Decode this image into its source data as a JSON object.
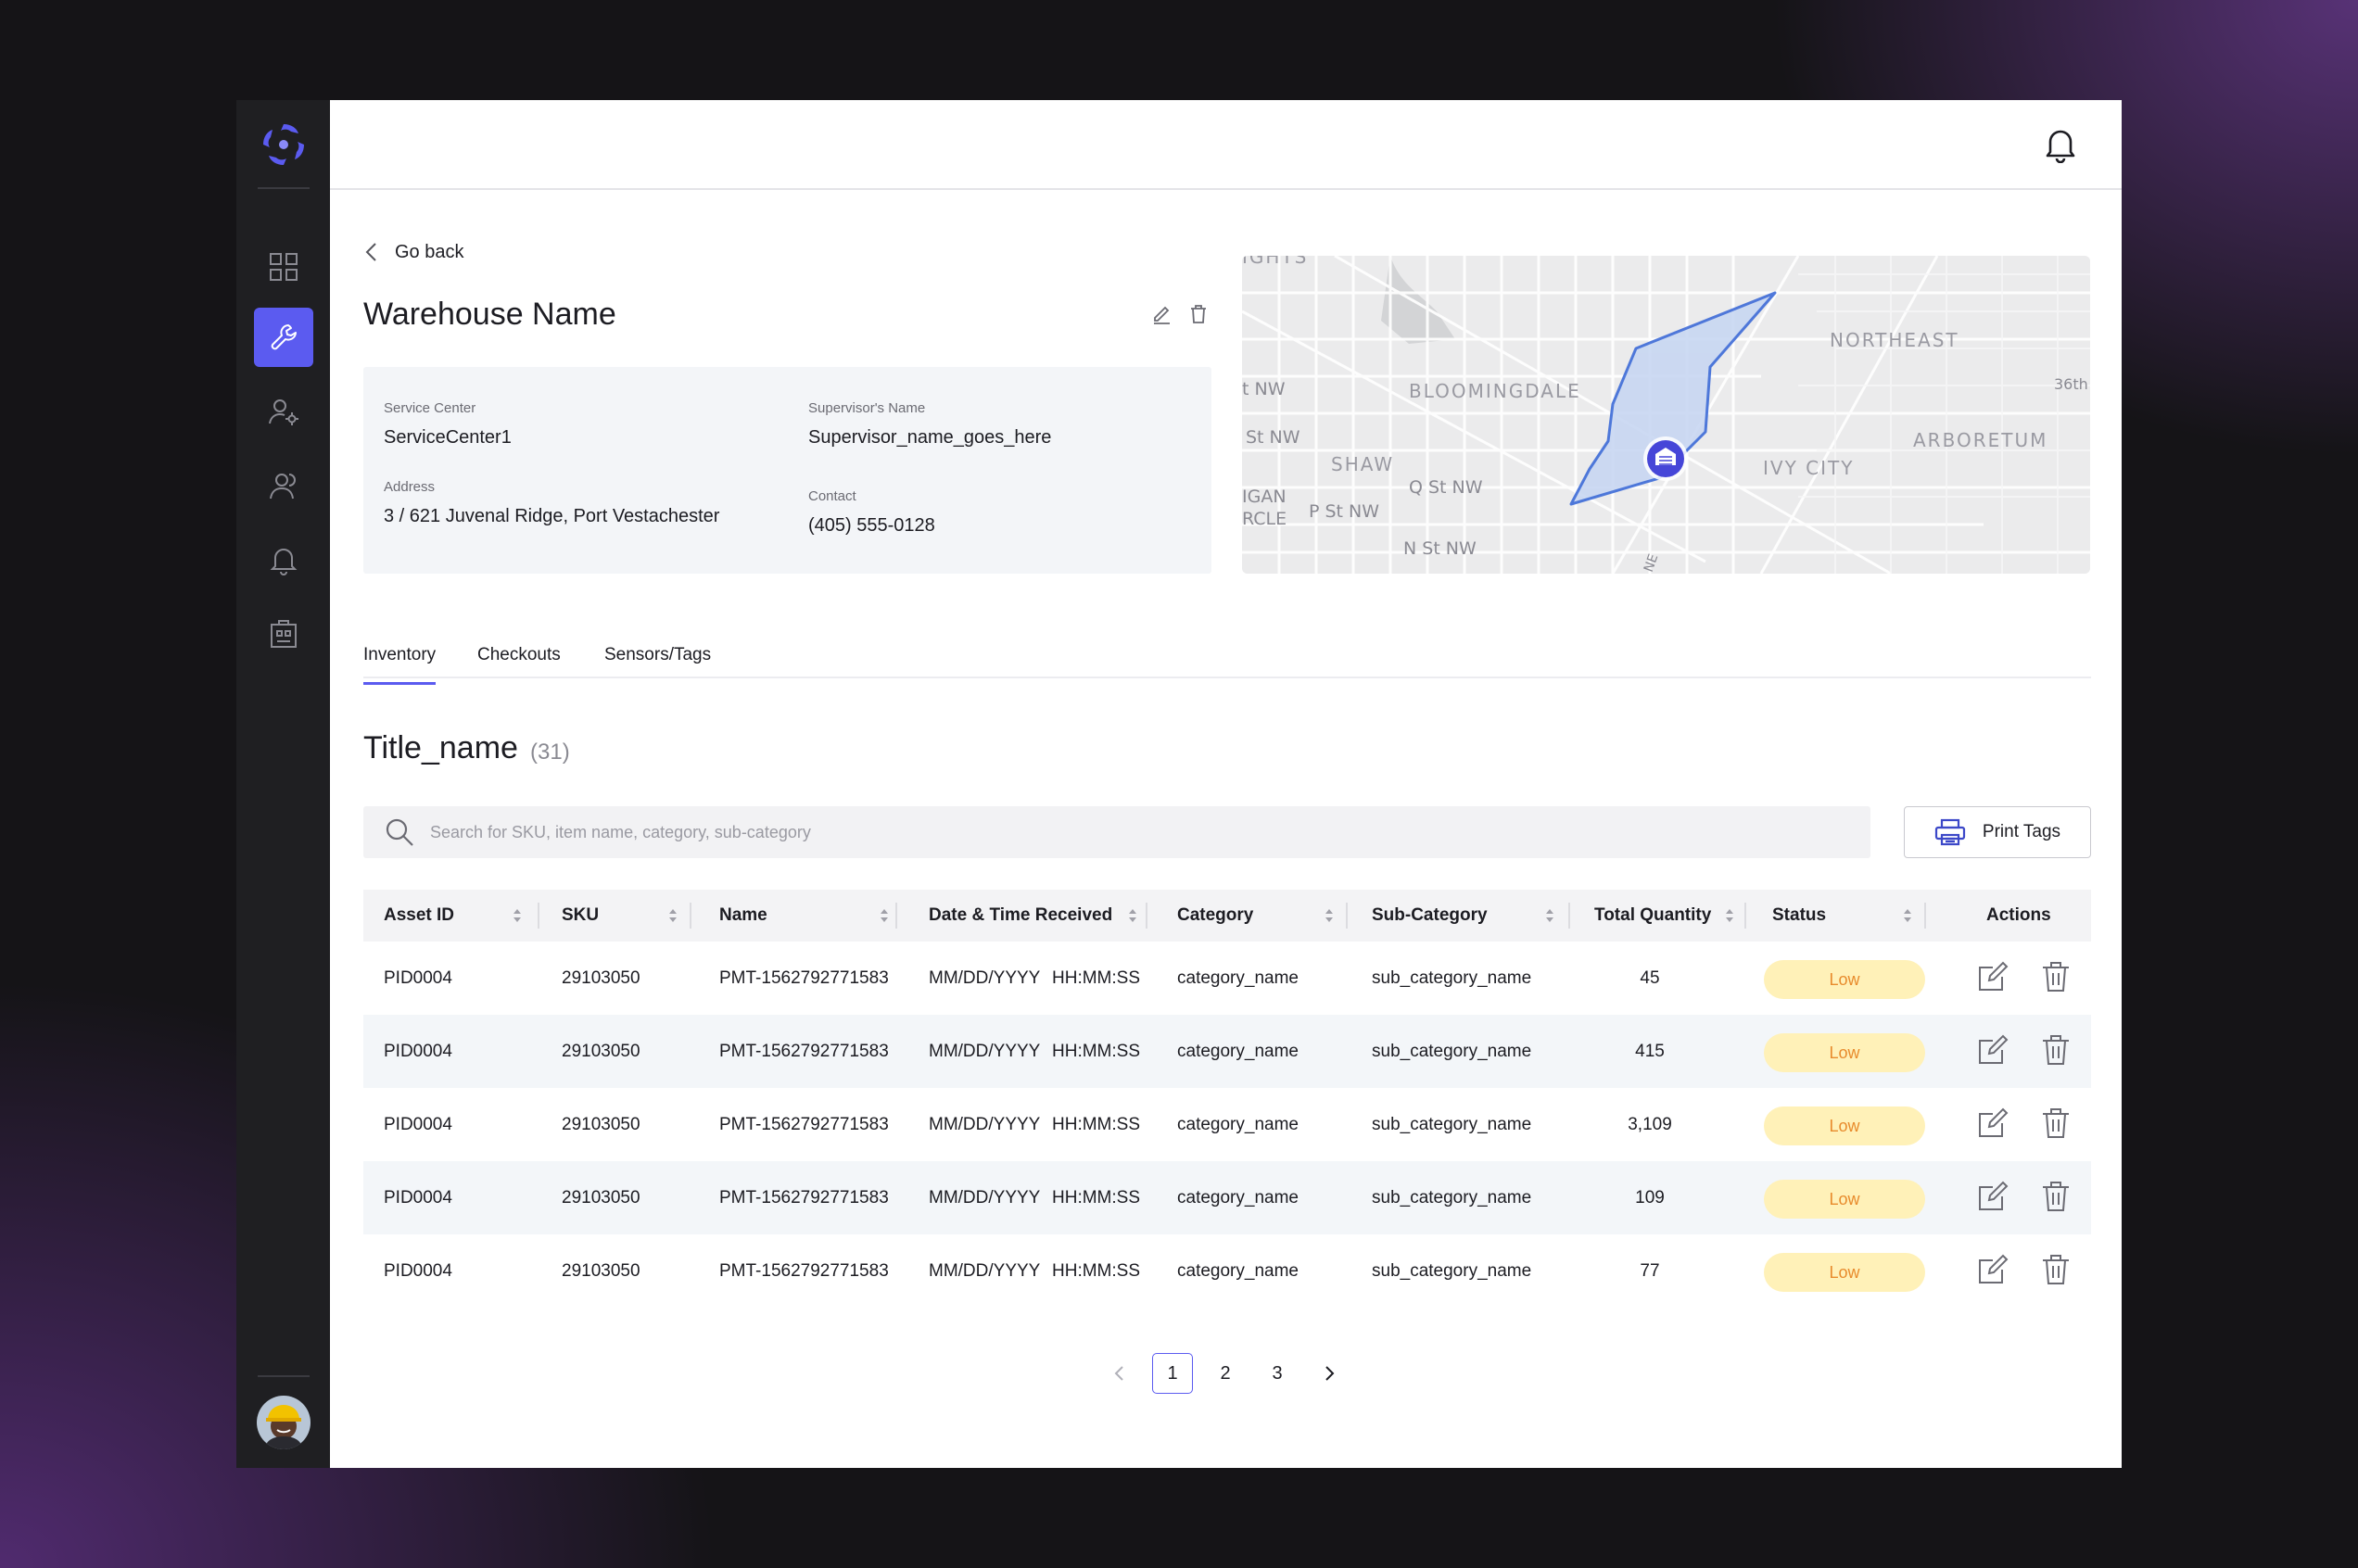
{
  "header": {
    "notifications_icon": "bell-icon"
  },
  "nav": {
    "back_label": "Go back"
  },
  "warehouse": {
    "name": "Warehouse Name",
    "service_center_label": "Service Center",
    "service_center": "ServiceCenter1",
    "supervisor_label": "Supervisor's Name",
    "supervisor": "Supervisor_name_goes_here",
    "address_label": "Address",
    "address": "3 / 621 Juvenal Ridge, Port Vestachester",
    "contact_label": "Contact",
    "contact": "(405) 555-0128"
  },
  "map": {
    "labels": [
      "IGHTS",
      "BLOOMINGDALE",
      "NORTHEAST",
      "ARBORETUM",
      "IVY CITY",
      "SHAW",
      "t NW",
      "St NW",
      "Q St NW",
      "P St NW",
      "N St NW",
      "IGAN",
      "RCLE",
      "36th",
      "NE"
    ]
  },
  "tabs": [
    {
      "label": "Inventory",
      "active": true
    },
    {
      "label": "Checkouts",
      "active": false
    },
    {
      "label": "Sensors/Tags",
      "active": false
    }
  ],
  "list": {
    "title": "Title_name",
    "count": "(31)"
  },
  "search": {
    "placeholder": "Search for SKU, item name, category, sub-category"
  },
  "print_label": "Print Tags",
  "table": {
    "headers": [
      "Asset ID",
      "SKU",
      "Name",
      "Date & Time Received",
      "Category",
      "Sub-Category",
      "Total Quantity",
      "Status",
      "Actions"
    ],
    "rows": [
      {
        "asset_id": "PID0004",
        "sku": "29103050",
        "name": "PMT-1562792771583",
        "date": "MM/DD/YYYY",
        "time": "HH:MM:SS",
        "category": "category_name",
        "sub_category": "sub_category_name",
        "quantity": "45",
        "status": "Low"
      },
      {
        "asset_id": "PID0004",
        "sku": "29103050",
        "name": "PMT-1562792771583",
        "date": "MM/DD/YYYY",
        "time": "HH:MM:SS",
        "category": "category_name",
        "sub_category": "sub_category_name",
        "quantity": "415",
        "status": "Low"
      },
      {
        "asset_id": "PID0004",
        "sku": "29103050",
        "name": "PMT-1562792771583",
        "date": "MM/DD/YYYY",
        "time": "HH:MM:SS",
        "category": "category_name",
        "sub_category": "sub_category_name",
        "quantity": "3,109",
        "status": "Low"
      },
      {
        "asset_id": "PID0004",
        "sku": "29103050",
        "name": "PMT-1562792771583",
        "date": "MM/DD/YYYY",
        "time": "HH:MM:SS",
        "category": "category_name",
        "sub_category": "sub_category_name",
        "quantity": "109",
        "status": "Low"
      },
      {
        "asset_id": "PID0004",
        "sku": "29103050",
        "name": "PMT-1562792771583",
        "date": "MM/DD/YYYY",
        "time": "HH:MM:SS",
        "category": "category_name",
        "sub_category": "sub_category_name",
        "quantity": "77",
        "status": "Low"
      }
    ]
  },
  "pagination": {
    "pages": [
      "1",
      "2",
      "3"
    ],
    "current": "1"
  },
  "colors": {
    "accent": "#5b5bf0",
    "status_low_bg": "#fff1b8",
    "status_low_text": "#e88b2c",
    "sidebar": "#1f1f22"
  }
}
